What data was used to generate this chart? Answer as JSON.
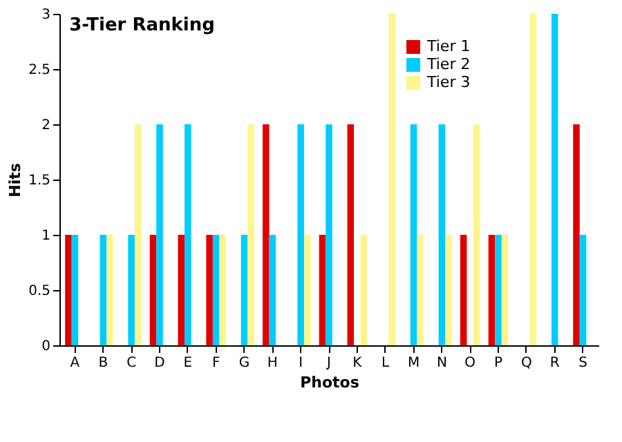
{
  "chart_data": {
    "type": "bar",
    "title": "3-Tier Ranking",
    "xlabel": "Photos",
    "ylabel": "Hits",
    "categories": [
      "A",
      "B",
      "C",
      "D",
      "E",
      "F",
      "G",
      "H",
      "I",
      "J",
      "K",
      "L",
      "M",
      "N",
      "O",
      "P",
      "Q",
      "R",
      "S"
    ],
    "series": [
      {
        "name": "Tier 1",
        "color": "#e00000",
        "values": [
          1,
          0,
          0,
          1,
          1,
          1,
          0,
          2,
          0,
          1,
          2,
          0,
          0,
          0,
          1,
          1,
          0,
          0,
          2
        ]
      },
      {
        "name": "Tier 2",
        "color": "#00ccff",
        "values": [
          1,
          1,
          1,
          2,
          2,
          1,
          1,
          1,
          2,
          2,
          0,
          0,
          2,
          2,
          0,
          1,
          0,
          3,
          1
        ]
      },
      {
        "name": "Tier 3",
        "color": "#fff58c",
        "values": [
          0,
          1,
          2,
          0,
          0,
          1,
          2,
          0,
          1,
          0,
          1,
          3,
          1,
          1,
          2,
          1,
          3,
          0,
          0
        ]
      }
    ],
    "ylim": [
      0,
      3
    ],
    "yticks": [
      0,
      0.5,
      1,
      1.5,
      2,
      2.5,
      3
    ],
    "grid": false,
    "legend": "top right"
  }
}
